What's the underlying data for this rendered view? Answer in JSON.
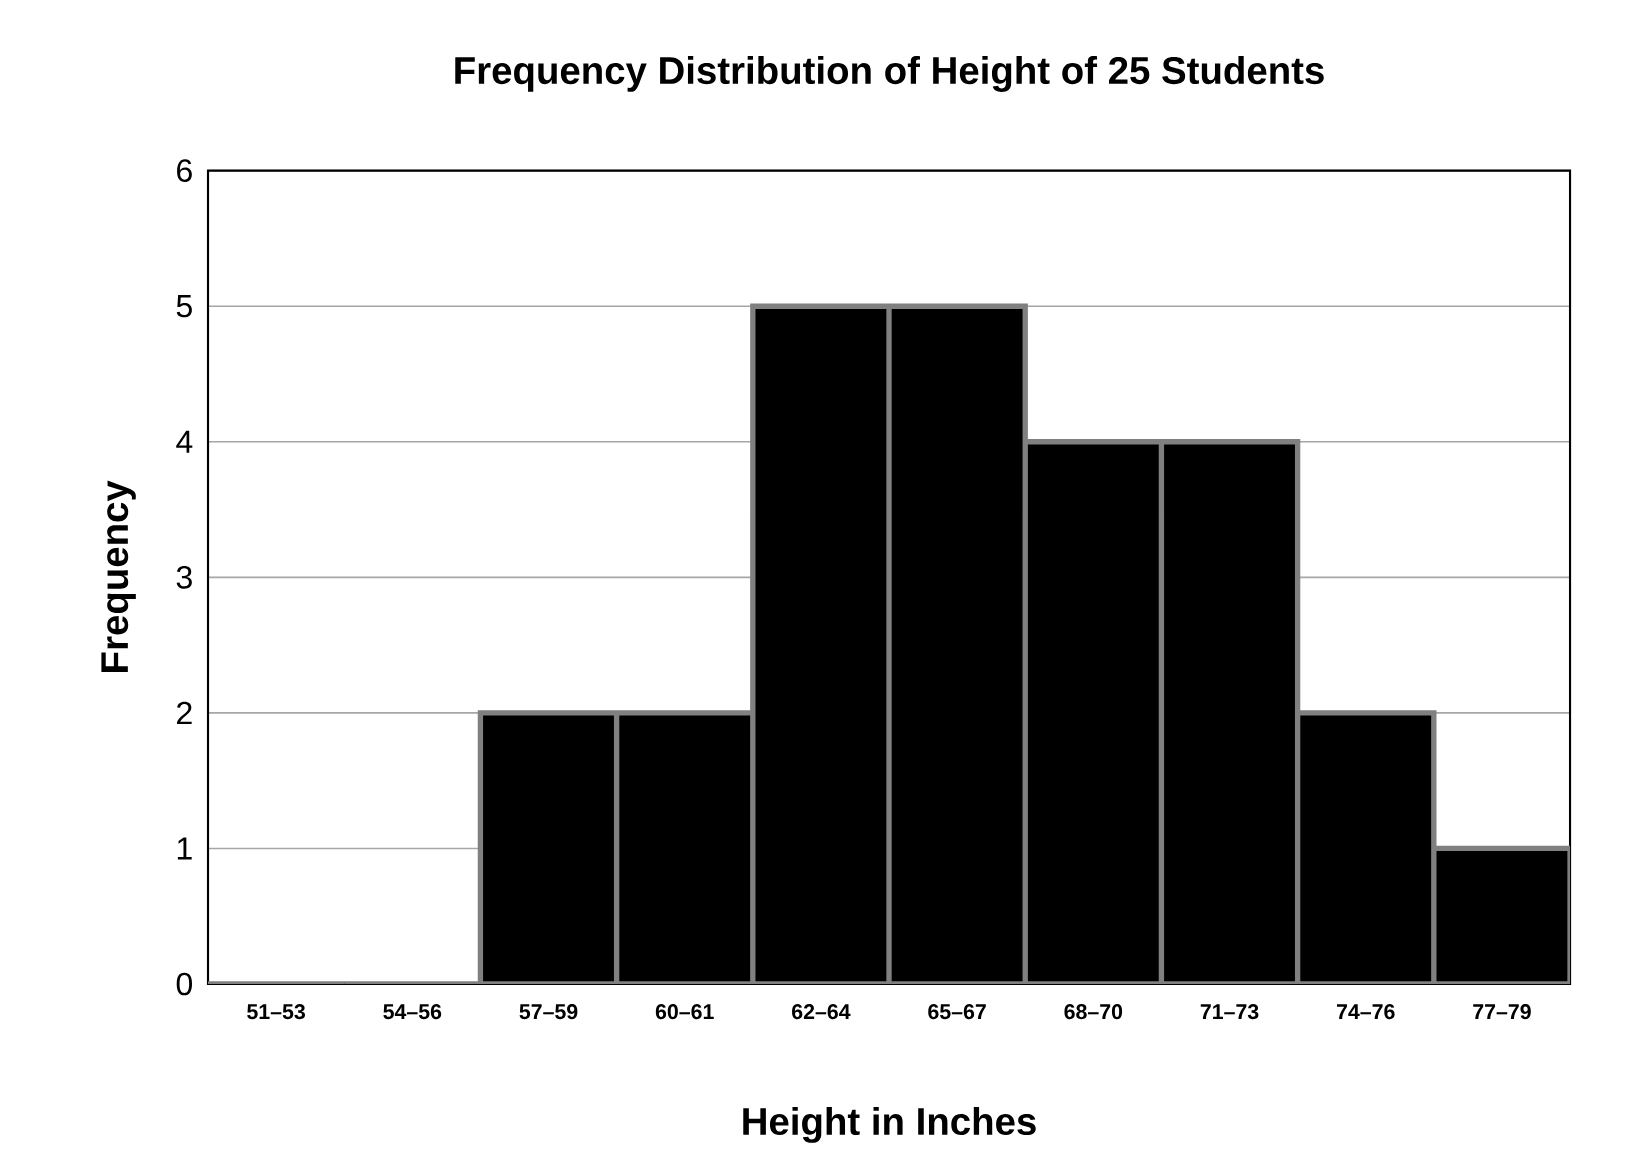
{
  "chart_data": {
    "type": "bar",
    "title": "Frequency Distribution of Height of 25 Students",
    "xlabel": "Height in Inches",
    "ylabel": "Frequency",
    "categories": [
      "51–53",
      "54–56",
      "57–59",
      "60–61",
      "62–64",
      "65–67",
      "68–70",
      "71–73",
      "74–76",
      "77–79"
    ],
    "values": [
      0,
      0,
      2,
      2,
      5,
      5,
      4,
      4,
      2,
      1
    ],
    "color": "#000000",
    "ylim": [
      0,
      6
    ],
    "yticks": [
      0,
      1,
      2,
      3,
      4,
      5,
      6
    ],
    "grid": "y"
  }
}
